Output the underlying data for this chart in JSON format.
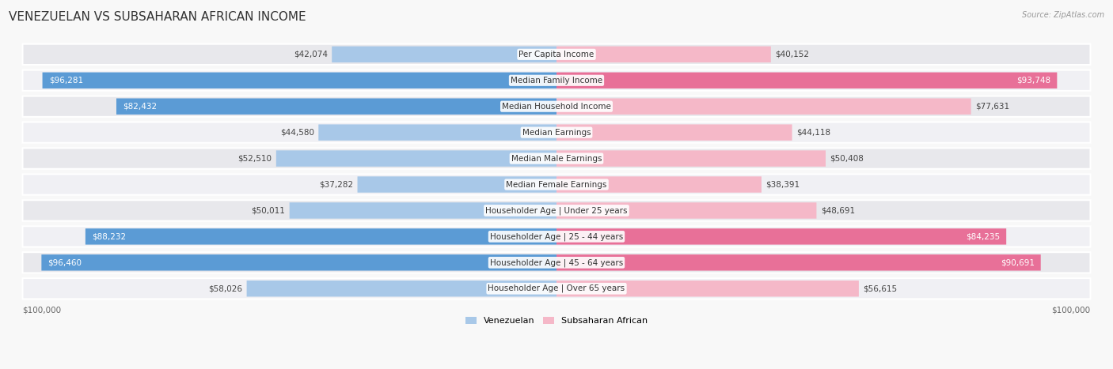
{
  "title": "VENEZUELAN VS SUBSAHARAN AFRICAN INCOME",
  "source": "Source: ZipAtlas.com",
  "categories": [
    "Per Capita Income",
    "Median Family Income",
    "Median Household Income",
    "Median Earnings",
    "Median Male Earnings",
    "Median Female Earnings",
    "Householder Age | Under 25 years",
    "Householder Age | 25 - 44 years",
    "Householder Age | 45 - 64 years",
    "Householder Age | Over 65 years"
  ],
  "venezuelan": [
    42074,
    96281,
    82432,
    44580,
    52510,
    37282,
    50011,
    88232,
    96460,
    58026
  ],
  "subsaharan": [
    40152,
    93748,
    77631,
    44118,
    50408,
    38391,
    48691,
    84235,
    90691,
    56615
  ],
  "max_val": 100000,
  "blue_light": "#a8c8e8",
  "blue_dark": "#5b9bd5",
  "pink_light": "#f5b8c8",
  "pink_dark": "#e87098",
  "label_blue": "Venezuelan",
  "label_pink": "Subsaharan African",
  "row_bg_light": "#f0f0f0",
  "row_bg_dark": "#e0e0e8",
  "fig_bg": "#f8f8f8",
  "title_fontsize": 11,
  "label_fontsize": 7.5,
  "value_fontsize": 7.5,
  "cat_fontsize": 7.5,
  "axis_label": "$100,000",
  "threshold_dark": 80000
}
